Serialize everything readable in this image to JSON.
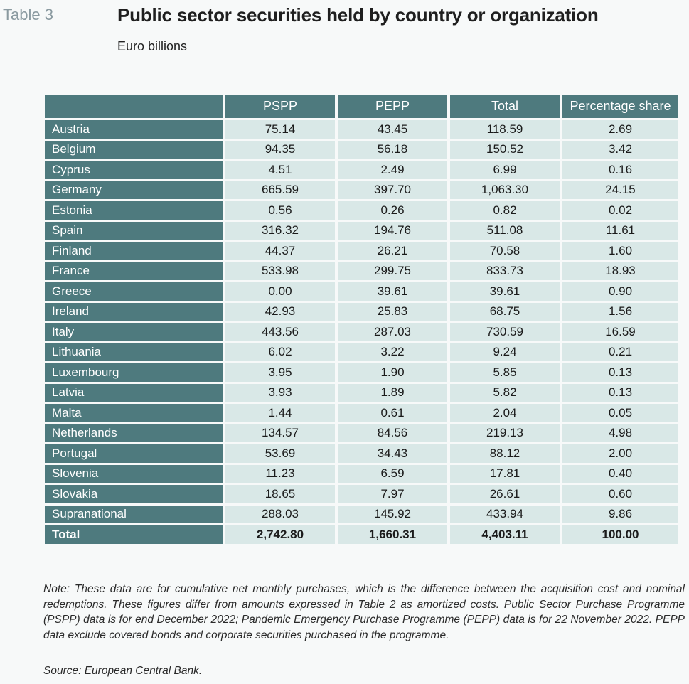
{
  "header": {
    "table_label": "Table 3",
    "title": "Public sector securities held by country or organization",
    "subtitle": "Euro billions"
  },
  "columns": [
    "",
    "PSPP",
    "PEPP",
    "Total",
    "Percentage share"
  ],
  "rows": [
    {
      "country": "Austria",
      "pspp": "75.14",
      "pepp": "43.45",
      "total": "118.59",
      "share": "2.69"
    },
    {
      "country": "Belgium",
      "pspp": "94.35",
      "pepp": "56.18",
      "total": "150.52",
      "share": "3.42"
    },
    {
      "country": "Cyprus",
      "pspp": "4.51",
      "pepp": "2.49",
      "total": "6.99",
      "share": "0.16"
    },
    {
      "country": "Germany",
      "pspp": "665.59",
      "pepp": "397.70",
      "total": "1,063.30",
      "share": "24.15"
    },
    {
      "country": "Estonia",
      "pspp": "0.56",
      "pepp": "0.26",
      "total": "0.82",
      "share": "0.02"
    },
    {
      "country": "Spain",
      "pspp": "316.32",
      "pepp": "194.76",
      "total": "511.08",
      "share": "11.61"
    },
    {
      "country": "Finland",
      "pspp": "44.37",
      "pepp": "26.21",
      "total": "70.58",
      "share": "1.60"
    },
    {
      "country": "France",
      "pspp": "533.98",
      "pepp": "299.75",
      "total": "833.73",
      "share": "18.93"
    },
    {
      "country": "Greece",
      "pspp": "0.00",
      "pepp": "39.61",
      "total": "39.61",
      "share": "0.90"
    },
    {
      "country": "Ireland",
      "pspp": "42.93",
      "pepp": "25.83",
      "total": "68.75",
      "share": "1.56"
    },
    {
      "country": "Italy",
      "pspp": "443.56",
      "pepp": "287.03",
      "total": "730.59",
      "share": "16.59"
    },
    {
      "country": "Lithuania",
      "pspp": "6.02",
      "pepp": "3.22",
      "total": "9.24",
      "share": "0.21"
    },
    {
      "country": "Luxembourg",
      "pspp": "3.95",
      "pepp": "1.90",
      "total": "5.85",
      "share": "0.13"
    },
    {
      "country": "Latvia",
      "pspp": "3.93",
      "pepp": "1.89",
      "total": "5.82",
      "share": "0.13"
    },
    {
      "country": "Malta",
      "pspp": "1.44",
      "pepp": "0.61",
      "total": "2.04",
      "share": "0.05"
    },
    {
      "country": "Netherlands",
      "pspp": "134.57",
      "pepp": "84.56",
      "total": "219.13",
      "share": "4.98"
    },
    {
      "country": "Portugal",
      "pspp": "53.69",
      "pepp": "34.43",
      "total": "88.12",
      "share": "2.00"
    },
    {
      "country": "Slovenia",
      "pspp": "11.23",
      "pepp": "6.59",
      "total": "17.81",
      "share": "0.40"
    },
    {
      "country": "Slovakia",
      "pspp": "18.65",
      "pepp": "7.97",
      "total": "26.61",
      "share": "0.60"
    },
    {
      "country": "Supranational",
      "pspp": "288.03",
      "pepp": "145.92",
      "total": "433.94",
      "share": "9.86"
    }
  ],
  "total_row": {
    "country": "Total",
    "pspp": "2,742.80",
    "pepp": "1,660.31",
    "total": "4,403.11",
    "share": "100.00"
  },
  "footer": {
    "note": "Note: These data are for cumulative net monthly purchases, which is the difference between the acquisition cost and nominal redemptions. These figures differ from amounts expressed in Table 2 as amortized costs. Public Sector Purchase Programme (PSPP) data is for end December 2022; Pandemic Emergency Purchase Programme (PEPP) data is for 22 November 2022. PEPP data exclude covered bonds and corporate securities purchased in the programme.",
    "source": "Source: European Central Bank."
  },
  "colors": {
    "header_bg": "#4e7a7e",
    "cell_bg": "#d9e8e7",
    "table_label": "#8a9aa0"
  }
}
